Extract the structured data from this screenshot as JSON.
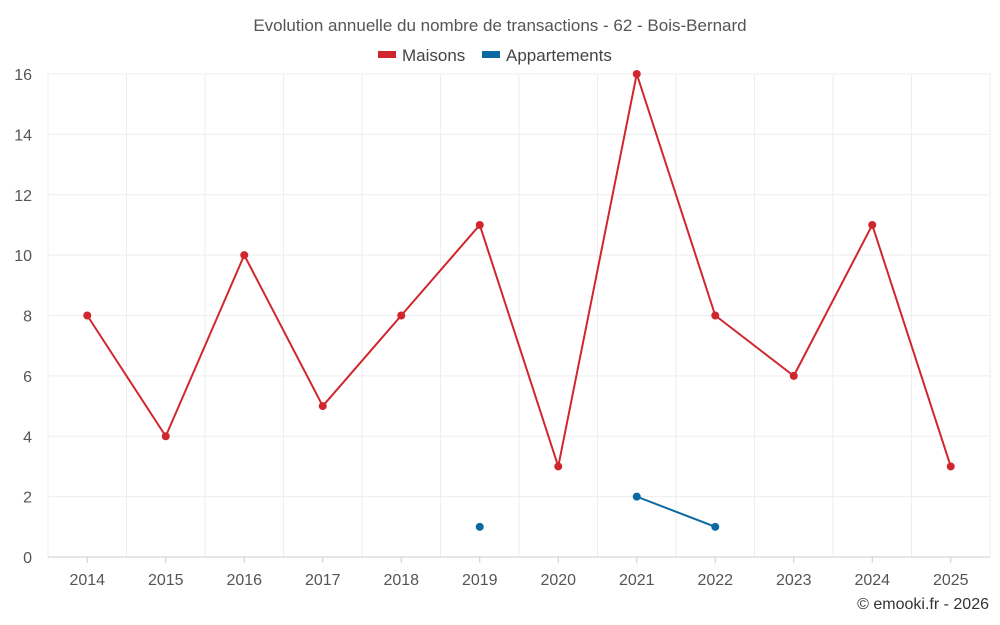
{
  "chart_data": {
    "type": "line",
    "title": "Evolution annuelle du nombre de transactions - 62 - Bois-Bernard",
    "categories": [
      "2014",
      "2015",
      "2016",
      "2017",
      "2018",
      "2019",
      "2020",
      "2021",
      "2022",
      "2023",
      "2024",
      "2025"
    ],
    "series": [
      {
        "name": "Maisons",
        "color": "#d0272e",
        "values": [
          8,
          4,
          10,
          5,
          8,
          11,
          3,
          16,
          8,
          6,
          11,
          3
        ]
      },
      {
        "name": "Appartements",
        "color": "#0a6aa1",
        "values": [
          null,
          null,
          null,
          null,
          null,
          1,
          null,
          2,
          1,
          null,
          null,
          null
        ]
      }
    ],
    "ylim": [
      0,
      16
    ],
    "yticks": [
      0,
      2,
      4,
      6,
      8,
      10,
      12,
      14,
      16
    ],
    "xlabel": "",
    "ylabel": "",
    "grid": true,
    "legend_position": "top-center"
  },
  "credit": "© emooki.fr - 2026"
}
